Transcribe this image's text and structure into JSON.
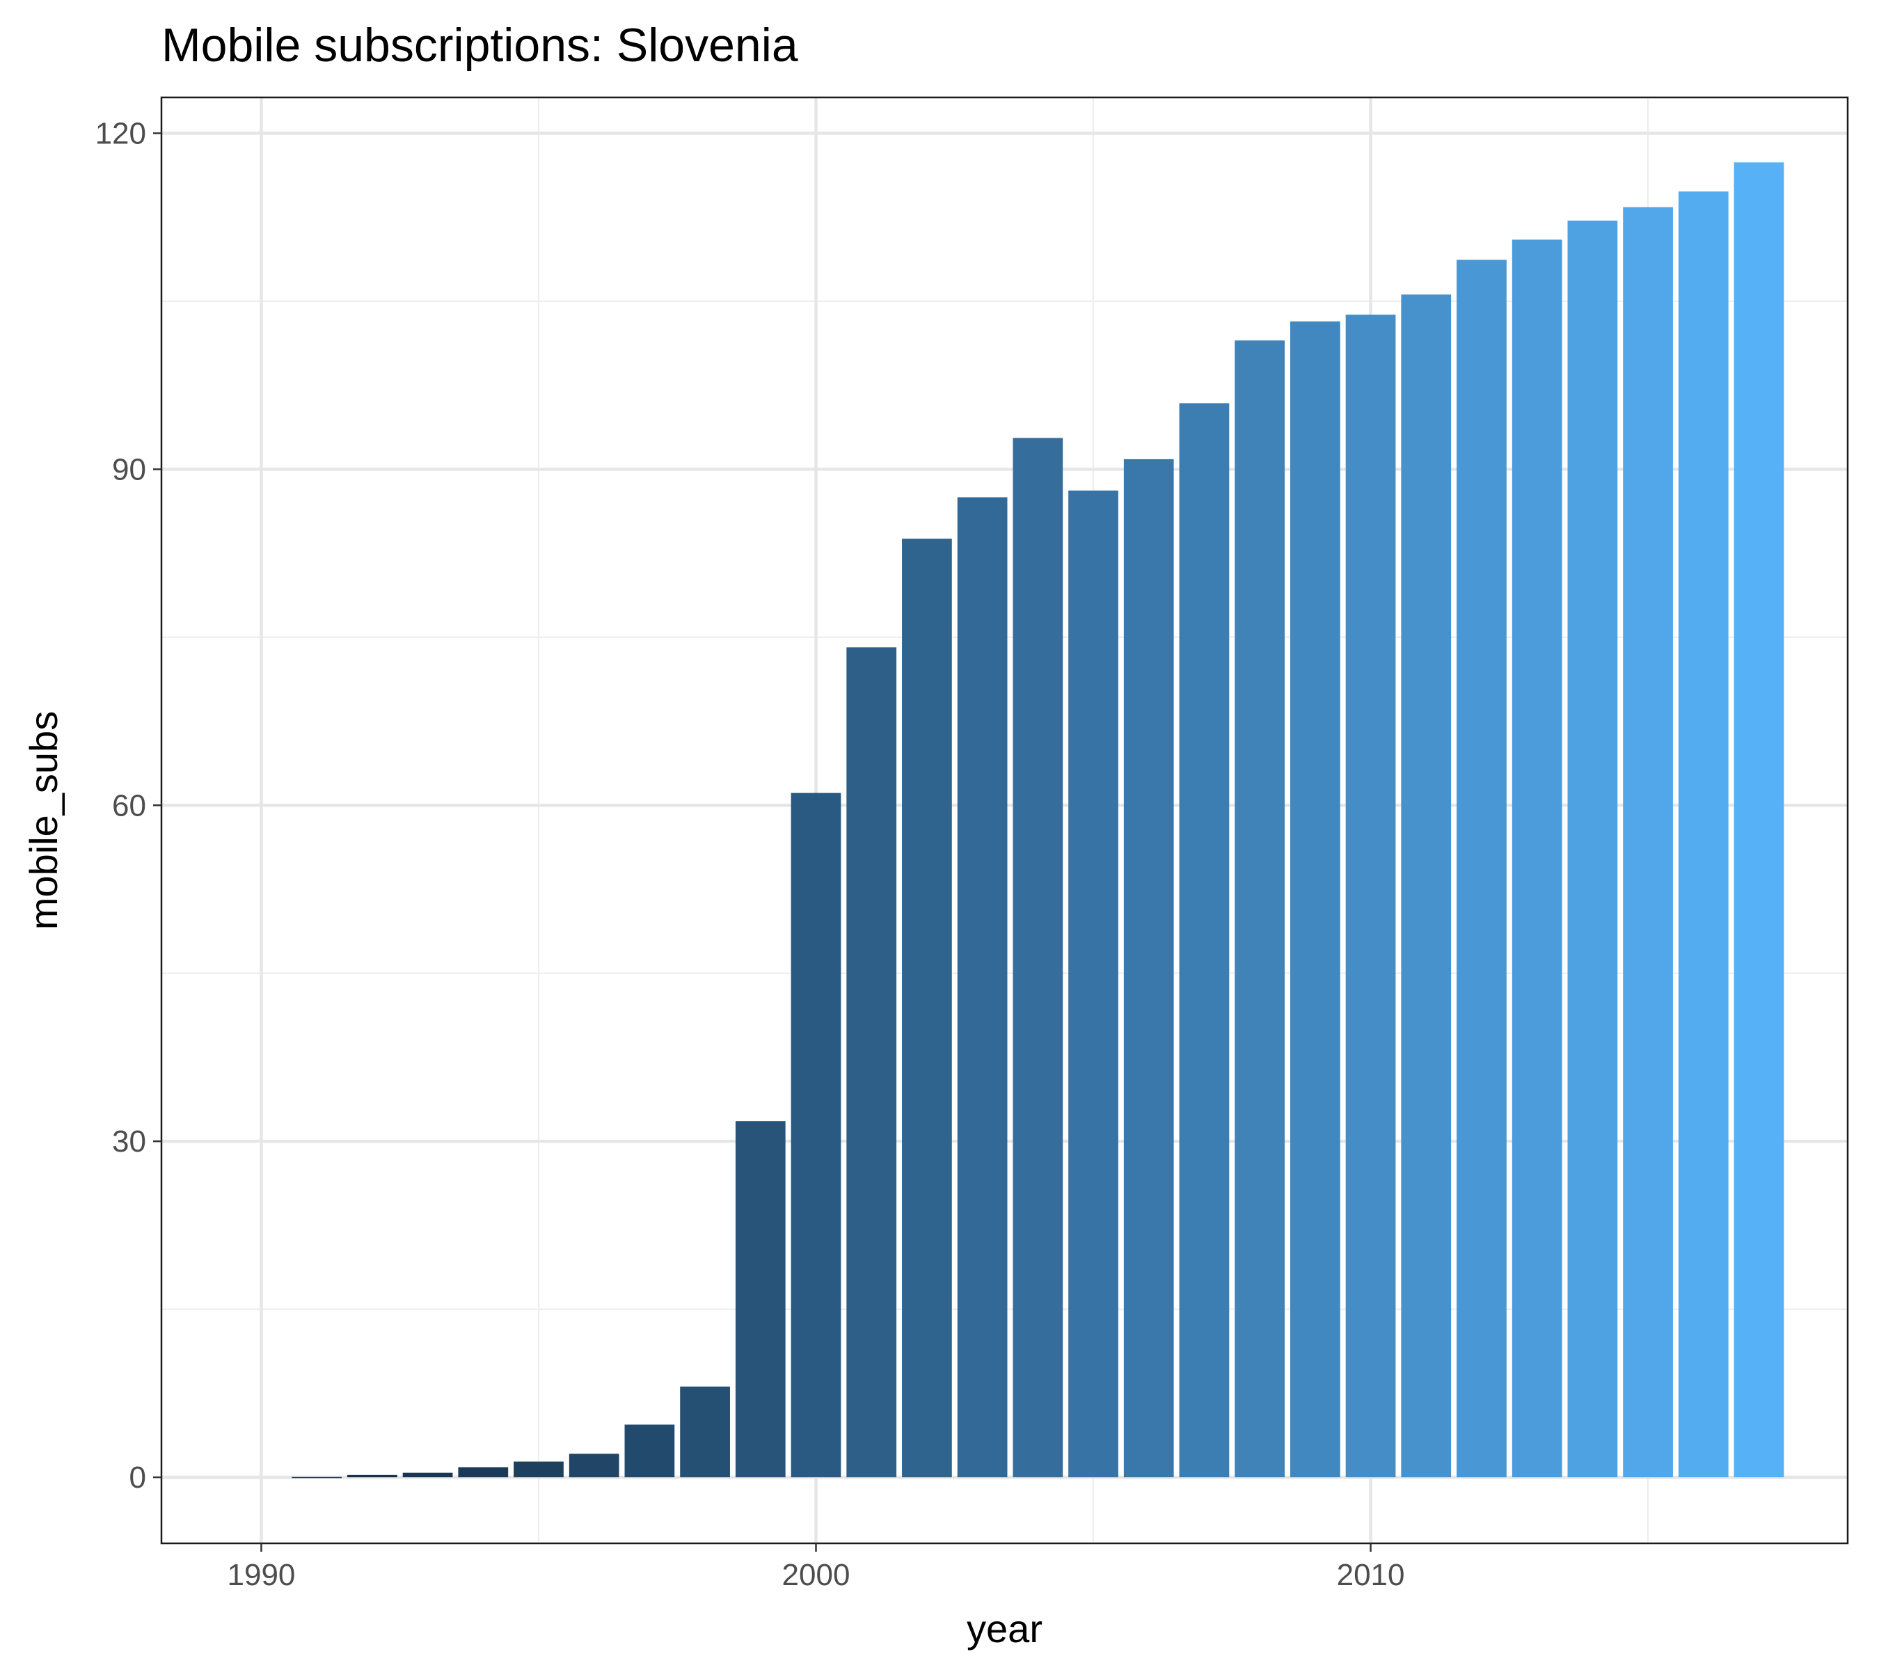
{
  "chart_data": {
    "type": "bar",
    "title": "Mobile subscriptions: Slovenia",
    "xlabel": "year",
    "ylabel": "mobile_subs",
    "x": [
      1991,
      1992,
      1993,
      1994,
      1995,
      1996,
      1997,
      1998,
      1999,
      2000,
      2001,
      2002,
      2003,
      2004,
      2005,
      2006,
      2007,
      2008,
      2009,
      2010,
      2011,
      2012,
      2013,
      2014,
      2015,
      2016,
      2017
    ],
    "values": [
      0.02,
      0.2,
      0.4,
      0.9,
      1.4,
      2.1,
      4.7,
      8.1,
      31.8,
      61.1,
      74.1,
      83.8,
      87.5,
      92.8,
      88.1,
      90.9,
      95.9,
      101.5,
      103.2,
      103.8,
      105.6,
      108.7,
      110.5,
      112.2,
      113.4,
      114.8,
      117.4
    ],
    "xlim": [
      1988.2,
      2018.6
    ],
    "ylim": [
      -5.9,
      123.2
    ],
    "x_ticks": [
      1990,
      2000,
      2010
    ],
    "x_tick_labels": [
      "1990",
      "2000",
      "2010"
    ],
    "y_ticks": [
      0,
      30,
      60,
      90,
      120
    ],
    "y_tick_labels": [
      "0",
      "30",
      "60",
      "90",
      "120"
    ],
    "grid": true,
    "legend": "none",
    "colors": {
      "low": "#132B43",
      "high": "#56B1F7"
    }
  }
}
